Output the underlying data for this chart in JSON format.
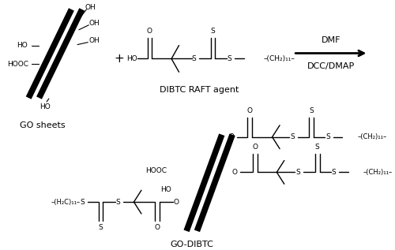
{
  "background_color": "#ffffff",
  "fig_width": 5.0,
  "fig_height": 3.17,
  "dpi": 100,
  "go_sheets_label": "GO sheets",
  "dibtc_label": "DIBTC RAFT agent",
  "godibtc_label": "GO-DIBTC",
  "dmf_label": "DMF",
  "dcc_label": "DCC/DMAP",
  "text_color": "#000000",
  "font_size": 7.5
}
